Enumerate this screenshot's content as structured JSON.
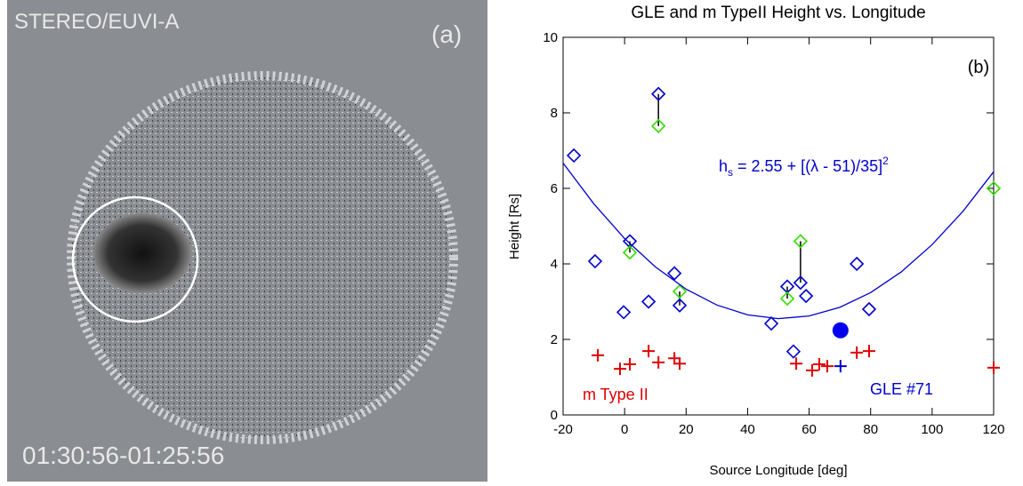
{
  "image_panel": {
    "instrument": "STEREO/EUVI-A",
    "panel_label": "(a)",
    "timestamp": "01:30:56-01:25:56"
  },
  "chart_data": {
    "type": "scatter",
    "title": "GLE and m TypeII Height vs. Longitude",
    "panel_label": "(b)",
    "x_label": "Source Longitude [deg]",
    "y_label": "Height [Rs]",
    "xlim": [
      -20,
      120
    ],
    "ylim": [
      0,
      10
    ],
    "xticks": [
      -20,
      0,
      20,
      40,
      60,
      80,
      100,
      120
    ],
    "yticks": [
      0,
      2,
      4,
      6,
      8,
      10
    ],
    "formula": {
      "h": "h",
      "sub": "s",
      "body": " = 2.55 + [(λ - 51)/35]",
      "sup": "2",
      "color": "#0000cc"
    },
    "annotations": [
      {
        "text": "m Type II",
        "color": "#e00000"
      },
      {
        "text": "GLE #71",
        "color": "#0000cc"
      }
    ],
    "series": [
      {
        "marker": "diamond",
        "color": "#0000cc",
        "x": [
          -16.5,
          -9.6,
          -0.3,
          1.7,
          7.8,
          11.0,
          16.2,
          17.9,
          47.7,
          52.9,
          54.9,
          57.2,
          59.0,
          75.5,
          79.5
        ],
        "values": [
          6.87,
          4.07,
          2.72,
          4.6,
          3.0,
          8.5,
          3.75,
          2.9,
          2.42,
          3.4,
          1.68,
          3.5,
          3.15,
          4.0,
          2.8
        ]
      },
      {
        "marker": "diamond",
        "color": "#33dd00",
        "x": [
          1.7,
          11.0,
          17.9,
          52.9,
          57.2,
          120
        ],
        "values": [
          4.3,
          7.65,
          3.27,
          3.08,
          4.6,
          6.0
        ]
      },
      {
        "marker": "cross",
        "color": "#e00000",
        "x": [
          -8.7,
          -1.5,
          1.7,
          7.8,
          11.0,
          16.2,
          17.9,
          55.8,
          61.0,
          63.3,
          65.9,
          75.5,
          79.5,
          120
        ],
        "values": [
          1.58,
          1.22,
          1.34,
          1.69,
          1.39,
          1.5,
          1.36,
          1.36,
          1.18,
          1.34,
          1.29,
          1.65,
          1.69,
          1.25
        ]
      },
      {
        "marker": "cross",
        "color": "#0000cc",
        "x": [
          70.2
        ],
        "values": [
          1.29
        ]
      },
      {
        "marker": "circle",
        "color": "#0000ee",
        "x": [
          70.2
        ],
        "values": [
          2.24
        ]
      },
      {
        "marker": "line",
        "color": "#0000cc",
        "x": [
          -20,
          -10,
          0,
          10,
          20,
          30,
          40,
          50,
          60,
          70,
          80,
          90,
          100,
          110,
          120
        ],
        "values": [
          6.67,
          5.59,
          4.67,
          3.92,
          3.33,
          2.91,
          2.65,
          2.55,
          2.62,
          2.85,
          3.24,
          3.79,
          4.51,
          5.39,
          6.44
        ]
      }
    ]
  }
}
